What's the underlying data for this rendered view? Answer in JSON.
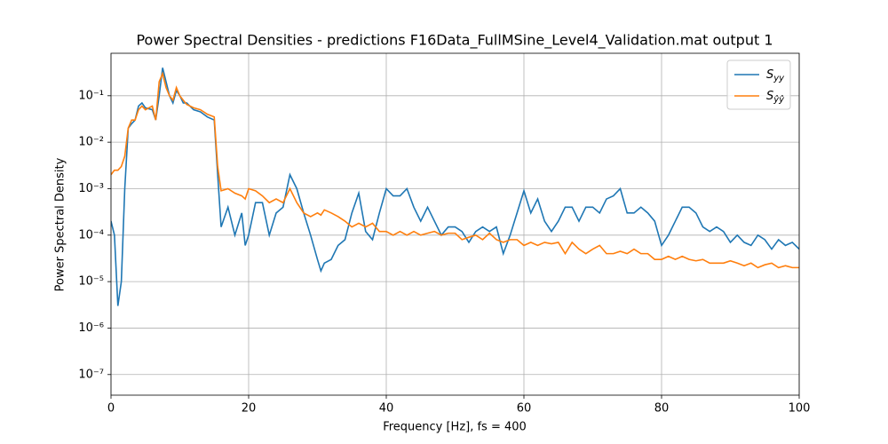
{
  "chart_data": {
    "type": "line",
    "title": "Power Spectral Densities - predictions F16Data_FullMSine_Level4_Validation.mat output 1",
    "xlabel": "Frequency [Hz], fs = 400",
    "ylabel": "Power Spectral Density",
    "yscale": "log",
    "grid": true,
    "legend": "upper right",
    "xlim": [
      0,
      100
    ],
    "xticks": [
      0,
      20,
      40,
      60,
      80,
      100
    ],
    "ylim": [
      3.6e-08,
      0.82
    ],
    "yticks": [
      {
        "value": 1e-07,
        "label": "10⁻⁷"
      },
      {
        "value": 1e-06,
        "label": "10⁻⁶"
      },
      {
        "value": 1e-05,
        "label": "10⁻⁵"
      },
      {
        "value": 0.0001,
        "label": "10⁻⁴"
      },
      {
        "value": 0.001,
        "label": "10⁻³"
      },
      {
        "value": 0.01,
        "label": "10⁻²"
      },
      {
        "value": 0.1,
        "label": "10⁻¹"
      }
    ],
    "x": [
      0,
      0.5,
      1,
      1.5,
      2,
      2.5,
      3,
      3.5,
      4,
      4.5,
      5,
      6,
      6.5,
      7,
      7.5,
      8,
      8.5,
      9,
      9.5,
      10,
      10.5,
      11,
      12,
      13,
      14,
      15,
      15.5,
      16,
      17,
      18,
      19,
      19.5,
      20,
      21,
      22,
      23,
      24,
      25,
      26,
      27,
      28,
      29,
      30,
      30.5,
      31,
      32,
      33,
      34,
      35,
      36,
      37,
      38,
      39,
      40,
      41,
      42,
      43,
      44,
      45,
      46,
      47,
      48,
      49,
      50,
      51,
      52,
      53,
      54,
      55,
      56,
      57,
      58,
      59,
      60,
      61,
      62,
      63,
      64,
      65,
      66,
      67,
      68,
      69,
      70,
      71,
      72,
      73,
      74,
      75,
      76,
      77,
      78,
      79,
      80,
      81,
      82,
      83,
      84,
      85,
      86,
      87,
      88,
      89,
      90,
      91,
      92,
      93,
      94,
      95,
      96,
      97,
      98,
      99,
      100
    ],
    "series": [
      {
        "name": "Syy",
        "color": "#1f77b4",
        "values": [
          0.0002,
          0.0001,
          3e-06,
          1e-05,
          0.001,
          0.02,
          0.025,
          0.03,
          0.06,
          0.07,
          0.055,
          0.05,
          0.03,
          0.1,
          0.4,
          0.2,
          0.1,
          0.07,
          0.13,
          0.1,
          0.07,
          0.07,
          0.05,
          0.045,
          0.035,
          0.03,
          0.002,
          0.00015,
          0.0004,
          0.0001,
          0.0003,
          6e-05,
          0.0001,
          0.0005,
          0.0005,
          0.0001,
          0.0003,
          0.0004,
          0.002,
          0.001,
          0.0003,
          0.0001,
          3e-05,
          1.7e-05,
          2.5e-05,
          3e-05,
          6e-05,
          8e-05,
          0.0003,
          0.0008,
          0.00012,
          8e-05,
          0.0003,
          0.001,
          0.0007,
          0.0007,
          0.001,
          0.0004,
          0.0002,
          0.0004,
          0.0002,
          0.0001,
          0.00015,
          0.00015,
          0.00012,
          7e-05,
          0.00012,
          0.00015,
          0.00012,
          0.00015,
          4e-05,
          0.0001,
          0.0003,
          0.0009,
          0.0003,
          0.0006,
          0.0002,
          0.00012,
          0.0002,
          0.0004,
          0.0004,
          0.0002,
          0.0004,
          0.0004,
          0.0003,
          0.0006,
          0.0007,
          0.001,
          0.0003,
          0.0003,
          0.0004,
          0.0003,
          0.0002,
          6e-05,
          0.0001,
          0.0002,
          0.0004,
          0.0004,
          0.0003,
          0.00015,
          0.00012,
          0.00015,
          0.00012,
          7e-05,
          0.0001,
          7e-05,
          6e-05,
          0.0001,
          8e-05,
          5e-05,
          8e-05,
          6e-05,
          7e-05,
          5e-05
        ]
      },
      {
        "name": "Sŷŷ",
        "color": "#ff7f0e",
        "values": [
          0.002,
          0.0025,
          0.0025,
          0.003,
          0.005,
          0.02,
          0.03,
          0.03,
          0.05,
          0.06,
          0.05,
          0.06,
          0.03,
          0.2,
          0.3,
          0.15,
          0.1,
          0.08,
          0.15,
          0.1,
          0.08,
          0.065,
          0.055,
          0.05,
          0.04,
          0.035,
          0.003,
          0.0009,
          0.001,
          0.0008,
          0.0007,
          0.0006,
          0.001,
          0.0009,
          0.0007,
          0.0005,
          0.0006,
          0.0005,
          0.001,
          0.0005,
          0.0003,
          0.00025,
          0.0003,
          0.00027,
          0.00035,
          0.0003,
          0.00025,
          0.0002,
          0.00015,
          0.00018,
          0.00015,
          0.00018,
          0.00012,
          0.00012,
          0.0001,
          0.00012,
          0.0001,
          0.00012,
          0.0001,
          0.00011,
          0.00012,
          0.0001,
          0.00011,
          0.00011,
          8e-05,
          9e-05,
          0.0001,
          8e-05,
          0.00011,
          8e-05,
          7e-05,
          8e-05,
          8e-05,
          6e-05,
          7e-05,
          6e-05,
          7e-05,
          6.5e-05,
          7e-05,
          4e-05,
          7e-05,
          5e-05,
          4e-05,
          5e-05,
          6e-05,
          4e-05,
          4e-05,
          4.5e-05,
          4e-05,
          5e-05,
          4e-05,
          4e-05,
          3e-05,
          3e-05,
          3.5e-05,
          3e-05,
          3.5e-05,
          3e-05,
          2.8e-05,
          3e-05,
          2.5e-05,
          2.5e-05,
          2.5e-05,
          2.8e-05,
          2.5e-05,
          2.2e-05,
          2.5e-05,
          2e-05,
          2.3e-05,
          2.5e-05,
          2e-05,
          2.2e-05,
          2e-05,
          2e-05
        ]
      }
    ]
  }
}
